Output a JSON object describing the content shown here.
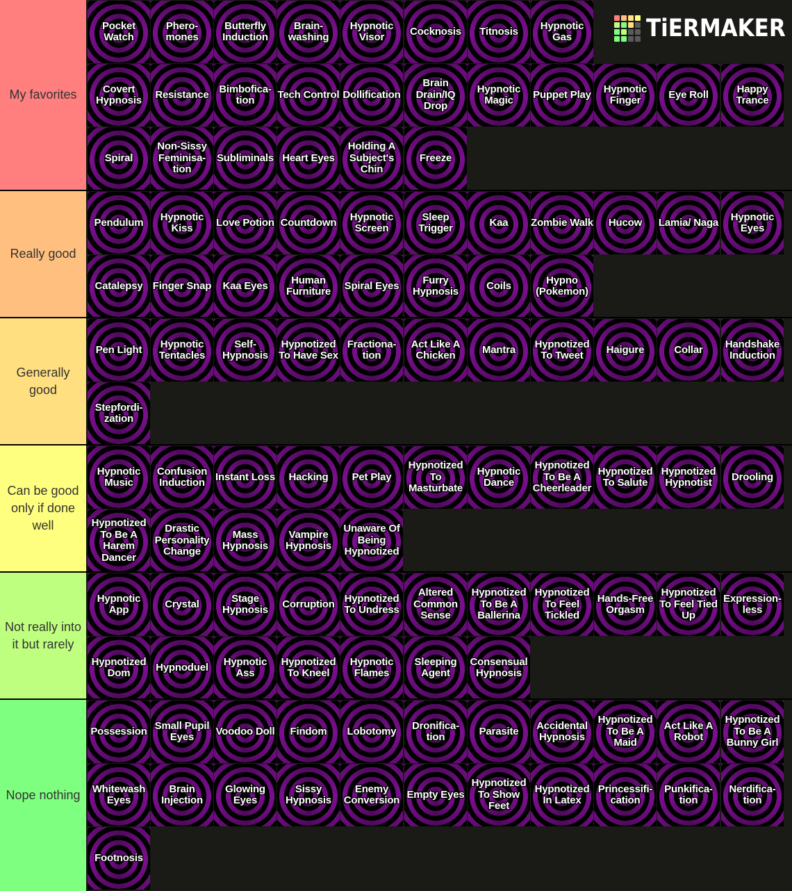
{
  "branding": {
    "logo_text": "TiERMAKER",
    "logo_grid_colors": [
      "#ff7f7f",
      "#ffbf7f",
      "#ffdf7f",
      "#ffff7f",
      "#bfff7f",
      "#7fff7f",
      "#ffdf7f",
      "#5a5a5a",
      "#7fff7f",
      "#bfff7f",
      "#5a5a5a",
      "#5a5a5a",
      "#7fff7f",
      "#7fff7f",
      "#5a5a5a",
      "#5a5a5a"
    ]
  },
  "tiers": [
    {
      "label": "My favorites",
      "color": "#ff7f7f",
      "items": [
        "Pocket Watch",
        "Phero-\nmones",
        "Butterfly Induction",
        "Brain-\nwashing",
        "Hypnotic Visor",
        "Cocknosis",
        "Titnosis",
        "Hypnotic Gas",
        "Covert Hypnosis",
        "Resistance",
        "Bimbofica-\ntion",
        "Tech Control",
        "Dollification",
        "Brain Drain/IQ Drop",
        "Hypnotic Magic",
        "Puppet Play",
        "Hypnotic Finger",
        "Eye Roll",
        "Happy Trance",
        "Spiral",
        "Non-Sissy Feminisa-\ntion",
        "Subliminals",
        "Heart Eyes",
        "Holding A Subject's Chin",
        "Freeze"
      ]
    },
    {
      "label": "Really good",
      "color": "#ffbf7f",
      "items": [
        "Pendulum",
        "Hypnotic Kiss",
        "Love Potion",
        "Countdown",
        "Hypnotic Screen",
        "Sleep Trigger",
        "Kaa",
        "Zombie Walk",
        "Hucow",
        "Lamia/ Naga",
        "Hypnotic Eyes",
        "Catalepsy",
        "Finger Snap",
        "Kaa Eyes",
        "Human Furniture",
        "Spiral Eyes",
        "Furry Hypnosis",
        "Coils",
        "Hypno (Pokemon)"
      ]
    },
    {
      "label": "Generally good",
      "color": "#ffdf7f",
      "items": [
        "Pen Light",
        "Hypnotic Tentacles",
        "Self-\nHypnosis",
        "Hypnotized To Have Sex",
        "Fractiona-\ntion",
        "Act Like A Chicken",
        "Mantra",
        "Hypnotized To Tweet",
        "Haigure",
        "Collar",
        "Handshake Induction",
        "Stepfordi-\nzation"
      ]
    },
    {
      "label": "Can be good only if done well",
      "color": "#ffff7f",
      "items": [
        "Hypnotic Music",
        "Confusion Induction",
        "Instant Loss",
        "Hacking",
        "Pet Play",
        "Hypnotized To Masturbate",
        "Hypnotic Dance",
        "Hypnotized To Be A Cheerleader",
        "Hypnotized To Salute",
        "Hypnotized Hypnotist",
        "Drooling",
        "Hypnotized To Be A Harem Dancer",
        "Drastic Personality Change",
        "Mass Hypnosis",
        "Vampire Hypnosis",
        "Unaware Of Being Hypnotized"
      ]
    },
    {
      "label": "Not really into it but rarely",
      "color": "#bfff7f",
      "items": [
        "Hypnotic App",
        "Crystal",
        "Stage Hypnosis",
        "Corruption",
        "Hypnotized To Undress",
        "Altered Common Sense",
        "Hypnotized To Be A Ballerina",
        "Hypnotized To Feel Tickled",
        "Hands-Free Orgasm",
        "Hypnotized To Feel Tied Up",
        "Expression-\nless",
        "Hypnotized Dom",
        "Hypnoduel",
        "Hypnotic Ass",
        "Hypnotized To Kneel",
        "Hypnotic Flames",
        "Sleeping Agent",
        "Consensual Hypnosis"
      ]
    },
    {
      "label": "Nope nothing",
      "color": "#7fff7f",
      "items": [
        "Possession",
        "Small Pupil Eyes",
        "Voodoo Doll",
        "Findom",
        "Lobotomy",
        "Dronifica-\ntion",
        "Parasite",
        "Accidental Hypnosis",
        "Hypnotized To Be A Maid",
        "Act Like A Robot",
        "Hypnotized To Be A Bunny Girl",
        "Whitewash Eyes",
        "Brain Injection",
        "Glowing Eyes",
        "Sissy Hypnosis",
        "Enemy Conversion",
        "Empty Eyes",
        "Hypnotized To Show Feet",
        "Hypnotized In Latex",
        "Princessifi-\ncation",
        "Punkifica-\ntion",
        "Nerdifica-\ntion",
        "Footnosis"
      ]
    }
  ]
}
